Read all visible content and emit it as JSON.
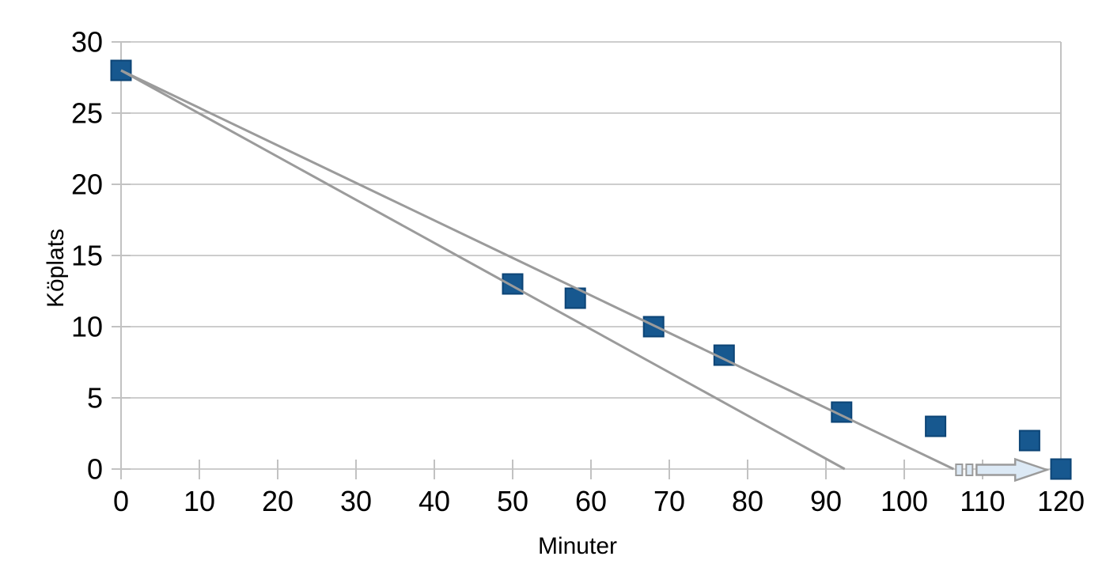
{
  "chart_data": {
    "type": "scatter",
    "title": "",
    "xlabel": "Minuter",
    "ylabel": "Köplats",
    "xlim": [
      0,
      120
    ],
    "ylim": [
      0,
      30
    ],
    "xticks": [
      0,
      10,
      20,
      30,
      40,
      50,
      60,
      70,
      80,
      90,
      100,
      110,
      120
    ],
    "yticks": [
      0,
      5,
      10,
      15,
      20,
      25,
      30
    ],
    "grid": "horizontal-only",
    "legend": false,
    "series": [
      {
        "name": "Köplats",
        "marker": "square",
        "color": "#17588F",
        "points": [
          [
            0,
            28
          ],
          [
            50,
            13
          ],
          [
            58,
            12
          ],
          [
            68,
            10
          ],
          [
            77,
            8
          ],
          [
            92,
            4
          ],
          [
            104,
            3
          ],
          [
            116,
            2
          ],
          [
            120,
            0
          ]
        ]
      }
    ],
    "trend_lines": [
      {
        "name": "projection-steep",
        "x1": 0,
        "y1": 28,
        "x2": 92.4,
        "y2": 0
      },
      {
        "name": "projection-shallow",
        "x1": 0,
        "y1": 28,
        "x2": 106.3,
        "y2": 0
      }
    ],
    "arrow": {
      "name": "extrapolation-arrow",
      "from_x": 106.6,
      "to_x": 118.2,
      "y": 0,
      "fill": "#DCE9F5",
      "stroke": "#9B9B9B"
    },
    "colors": {
      "marker_fill": "#17588F",
      "marker_stroke": "#0C4476",
      "trend_line": "#9B9B9B",
      "grid": "#CDCDCD",
      "tick": "#C2C2C2",
      "text": "#000000",
      "background": "#FFFFFF"
    }
  }
}
